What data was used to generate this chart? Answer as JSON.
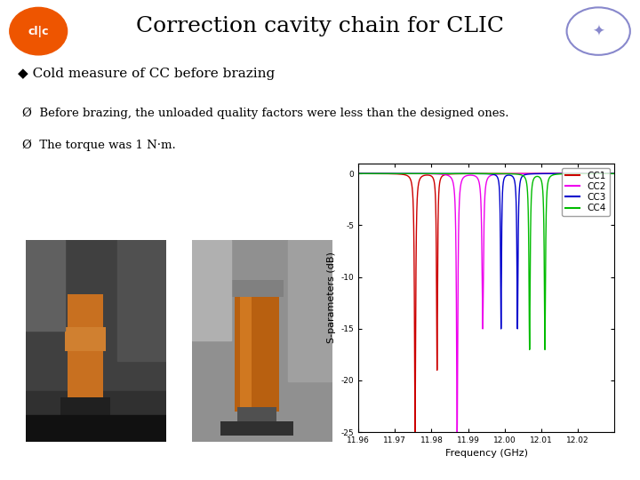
{
  "title": "Correction cavity chain for CLIC",
  "title_fontsize": 18,
  "title_color": "#000000",
  "background_color": "#ffffff",
  "header_line_color": "#e8d8a0",
  "bullet1": "◆ Cold measure of CC before brazing",
  "bullet2_1": "Ø  Before brazing, the unloaded quality factors were less than the designed ones.",
  "bullet2_2": "Ø  The torque was 1 N·m.",
  "plot_xlabel": "Frequency (GHz)",
  "plot_ylabel": "S-parameters (dB)",
  "plot_xlim": [
    11.96,
    12.03
  ],
  "plot_ylim": [
    -25,
    1
  ],
  "plot_yticks": [
    0,
    -5,
    -10,
    -15,
    -20,
    -25
  ],
  "plot_xticks": [
    11.96,
    11.97,
    11.98,
    11.99,
    12.0,
    12.01,
    12.02
  ],
  "legend_labels": [
    "CC1",
    "CC2",
    "CC3",
    "CC4"
  ],
  "legend_colors": [
    "#cc0000",
    "#ee00ee",
    "#0000cc",
    "#00bb00"
  ]
}
